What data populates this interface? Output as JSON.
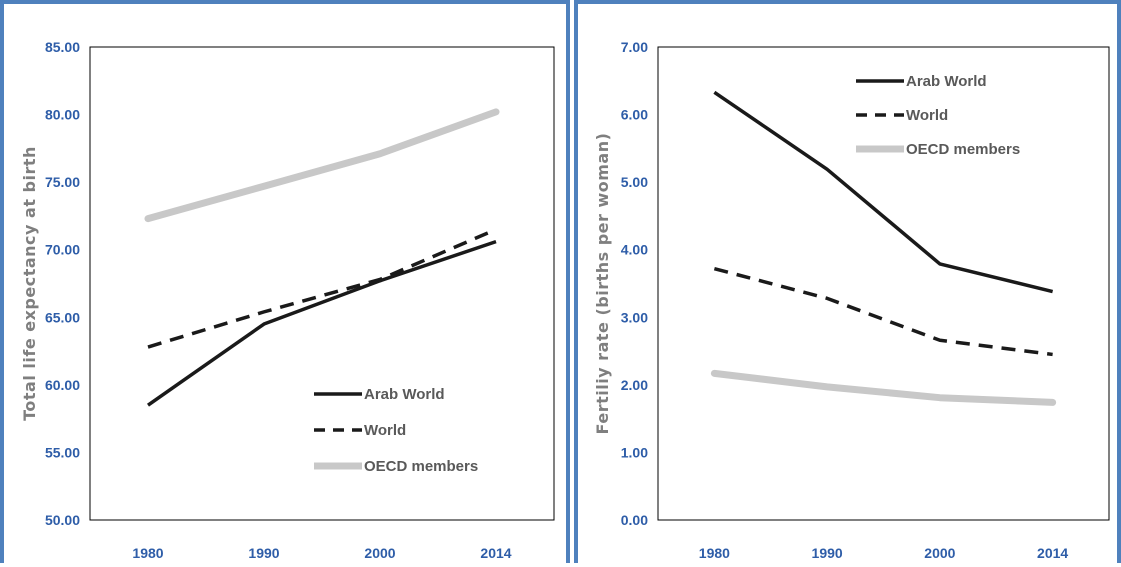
{
  "chart_data": [
    {
      "type": "line",
      "categories": [
        "1980",
        "1990",
        "2000",
        "2014"
      ],
      "ylabel": "Total life expectancy at birth",
      "xlabel": "",
      "ylim": [
        50,
        85
      ],
      "yticks": [
        "50.00",
        "55.00",
        "60.00",
        "65.00",
        "70.00",
        "75.00",
        "80.00",
        "85.00"
      ],
      "grid": false,
      "legend": "bottom-right",
      "series": [
        {
          "name": "Arab World",
          "values": [
            58.5,
            64.5,
            67.7,
            70.6
          ],
          "color": "#1a1a1a",
          "style": "solid"
        },
        {
          "name": "World",
          "values": [
            62.8,
            65.4,
            67.8,
            71.5
          ],
          "color": "#1a1a1a",
          "style": "dashed"
        },
        {
          "name": "OECD members",
          "values": [
            72.3,
            74.7,
            77.1,
            80.2
          ],
          "color": "#c8c8c8",
          "style": "solid"
        }
      ]
    },
    {
      "type": "line",
      "categories": [
        "1980",
        "1990",
        "2000",
        "2014"
      ],
      "ylabel": "Fertiliy rate (births per woman)",
      "xlabel": "",
      "ylim": [
        0,
        7
      ],
      "yticks": [
        "0.00",
        "1.00",
        "2.00",
        "3.00",
        "4.00",
        "5.00",
        "6.00",
        "7.00"
      ],
      "grid": false,
      "legend": "top-right",
      "series": [
        {
          "name": "Arab World",
          "values": [
            6.33,
            5.19,
            3.79,
            3.38
          ],
          "color": "#1a1a1a",
          "style": "solid"
        },
        {
          "name": "World",
          "values": [
            3.72,
            3.28,
            2.66,
            2.45
          ],
          "color": "#1a1a1a",
          "style": "dashed"
        },
        {
          "name": "OECD members",
          "values": [
            2.17,
            1.97,
            1.81,
            1.74
          ],
          "color": "#c8c8c8",
          "style": "solid"
        }
      ]
    }
  ]
}
